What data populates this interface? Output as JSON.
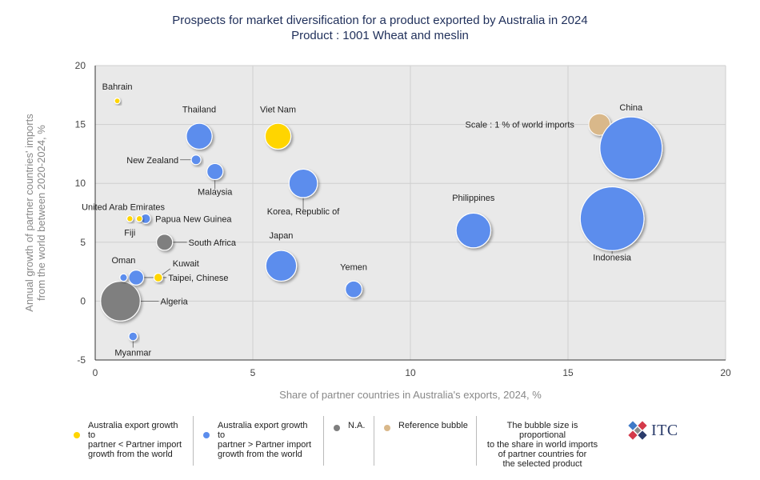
{
  "title_line1": "Prospects for market diversification for a product exported by Australia in 2024",
  "title_line2": "Product : 1001 Wheat and meslin",
  "colors": {
    "yellow": "#ffd500",
    "blue": "#5b8ded",
    "gray": "#7f7f7f",
    "reference": "#d9b88a",
    "plot_bg": "#e9e9e9"
  },
  "chart_data": {
    "type": "scatter",
    "subtype": "bubble",
    "xlabel": "Share of partner countries in Australia's exports, 2024, %",
    "ylabel_line1": "Annual growth of partner countries' imports",
    "ylabel_line2": "from the world between 2020-2024, %",
    "xlim": [
      0,
      20
    ],
    "ylim": [
      -5,
      20
    ],
    "xticks": [
      0,
      5,
      10,
      15,
      20
    ],
    "yticks": [
      -5,
      0,
      5,
      10,
      15,
      20
    ],
    "grid": "vertical and horizontal",
    "points": [
      {
        "name": "Bahrain",
        "x": 0.7,
        "y": 17,
        "size": 0.1,
        "category": "yellow"
      },
      {
        "name": "Thailand",
        "x": 3.3,
        "y": 14,
        "size": 3.6,
        "category": "blue"
      },
      {
        "name": "Viet Nam",
        "x": 5.8,
        "y": 14,
        "size": 3.6,
        "category": "yellow"
      },
      {
        "name": "China",
        "x": 17.0,
        "y": 13,
        "size": 21,
        "category": "blue"
      },
      {
        "name": "New Zealand",
        "x": 3.2,
        "y": 12,
        "size": 0.5,
        "category": "blue"
      },
      {
        "name": "Malaysia",
        "x": 3.8,
        "y": 11,
        "size": 1.4,
        "category": "blue"
      },
      {
        "name": "Korea, Republic of",
        "x": 6.6,
        "y": 10,
        "size": 4.4,
        "category": "blue"
      },
      {
        "name": "United Arab Emirates",
        "x": 1.6,
        "y": 7,
        "size": 0.5,
        "category": "blue"
      },
      {
        "name": "Papua New Guinea",
        "x": 1.4,
        "y": 7,
        "size": 0.2,
        "category": "yellow"
      },
      {
        "name": "Fiji",
        "x": 1.1,
        "y": 7,
        "size": 0.2,
        "category": "yellow"
      },
      {
        "name": "Philippines",
        "x": 12.0,
        "y": 6,
        "size": 6.5,
        "category": "blue"
      },
      {
        "name": "Indonesia",
        "x": 16.4,
        "y": 7,
        "size": 22,
        "category": "blue"
      },
      {
        "name": "South Africa",
        "x": 2.2,
        "y": 5,
        "size": 1.4,
        "category": "gray"
      },
      {
        "name": "Japan",
        "x": 5.9,
        "y": 3,
        "size": 5.1,
        "category": "blue"
      },
      {
        "name": "Yemen",
        "x": 8.2,
        "y": 1,
        "size": 1.5,
        "category": "blue"
      },
      {
        "name": "Oman",
        "x": 0.9,
        "y": 2,
        "size": 0.3,
        "category": "blue"
      },
      {
        "name": "Taipei, Chinese",
        "x": 1.3,
        "y": 2,
        "size": 1.2,
        "category": "blue"
      },
      {
        "name": "Kuwait",
        "x": 2.0,
        "y": 2,
        "size": 0.4,
        "category": "yellow"
      },
      {
        "name": "Algeria",
        "x": 0.8,
        "y": 0,
        "size": 8.5,
        "category": "gray"
      },
      {
        "name": "Myanmar",
        "x": 1.2,
        "y": -3,
        "size": 0.4,
        "category": "blue"
      }
    ],
    "reference_bubble": {
      "label": "Scale : 1 % of world imports",
      "x": 16.0,
      "y": 15,
      "size": 1
    }
  },
  "legend": {
    "yellow_line1": "Australia export growth to",
    "yellow_line2": "partner < Partner import",
    "yellow_line3": "growth from the world",
    "blue_line1": "Australia export growth to",
    "blue_line2": "partner > Partner import",
    "blue_line3": "growth from the world",
    "gray_label": "N.A.",
    "reference_label": "Reference bubble",
    "note_line1": "The bubble size is proportional",
    "note_line2": "to the share in world imports",
    "note_line3": "of partner countries for",
    "note_line4": "the selected product"
  },
  "logo": {
    "text": "ITC"
  }
}
